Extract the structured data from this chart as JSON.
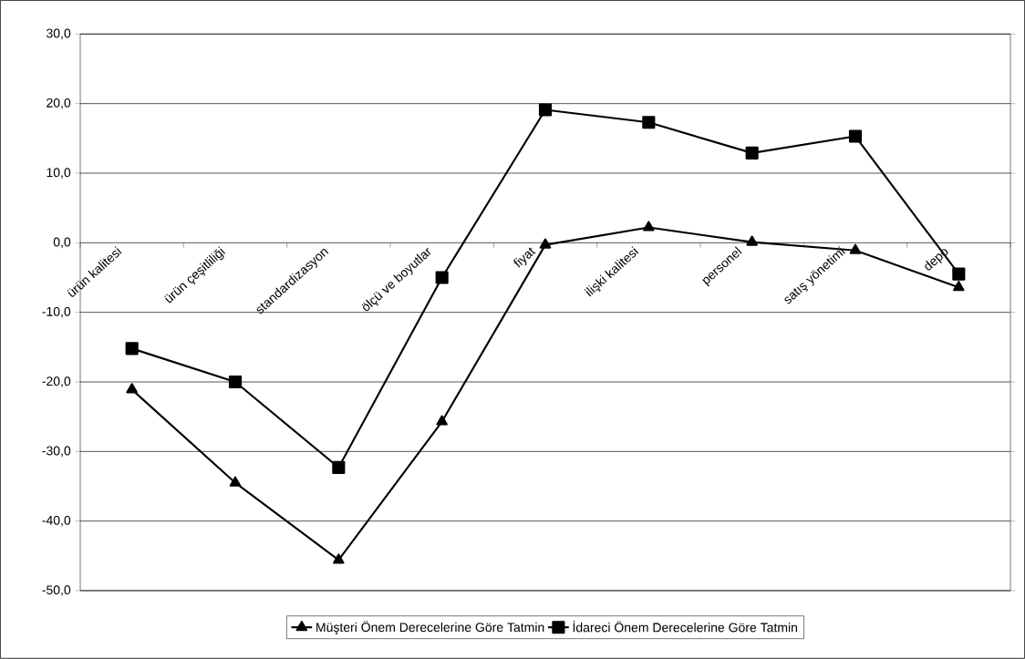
{
  "chart_data": {
    "type": "line",
    "categories": [
      "ürün kalitesi",
      "ürün çeşitliliği",
      "standardizasyon",
      "ölçü ve boyutlar",
      "fiyat",
      "ilişki kalitesi",
      "personel",
      "satış yönetimi",
      "depo"
    ],
    "series": [
      {
        "name": "Müşteri Önem Derecelerine Göre Tatmin",
        "color": "#000000",
        "marker": "triangle",
        "values": [
          -21.1,
          -34.5,
          -45.6,
          -25.7,
          -0.3,
          2.2,
          0.1,
          -1.1,
          -6.4
        ]
      },
      {
        "name": "İdareci Önem Derecelerine Göre Tatmin",
        "color": "#000000",
        "marker": "square",
        "values": [
          -15.2,
          -20.0,
          -32.3,
          -5.0,
          19.1,
          17.3,
          12.9,
          15.3,
          -4.5
        ]
      }
    ],
    "ylim": [
      -50,
      30
    ],
    "yticks": [
      {
        "value": -50,
        "label": "-50,0"
      },
      {
        "value": -40,
        "label": "-40,0"
      },
      {
        "value": -30,
        "label": "-30,0"
      },
      {
        "value": -20,
        "label": "-20,0"
      },
      {
        "value": -10,
        "label": "-10,0"
      },
      {
        "value": 0,
        "label": "0,0"
      },
      {
        "value": 10,
        "label": "10,0"
      },
      {
        "value": 20,
        "label": "20,0"
      },
      {
        "value": 30,
        "label": "30,0"
      }
    ],
    "grid": "y",
    "legend": "bottom",
    "line_style": "solid"
  }
}
